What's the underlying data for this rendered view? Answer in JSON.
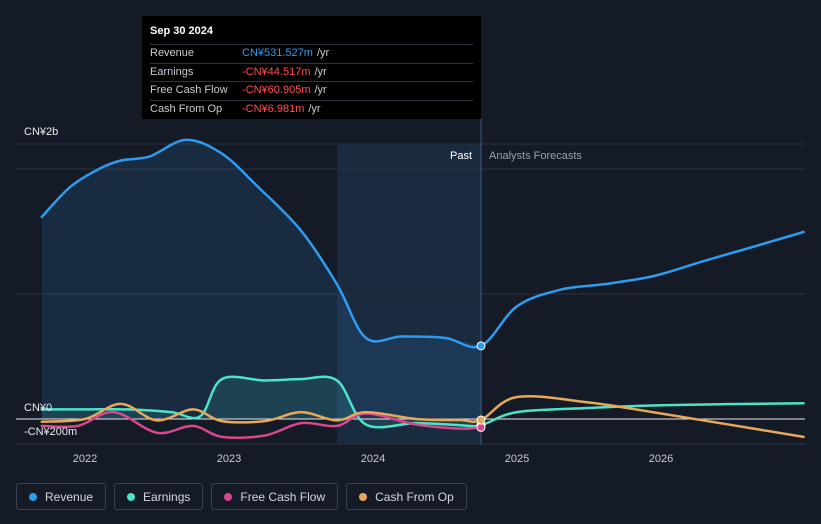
{
  "tooltip": {
    "date": "Sep 30 2024",
    "rows": [
      {
        "label": "Revenue",
        "value": "CN¥531.527m",
        "unit": "/yr",
        "color": "#2d9cf0"
      },
      {
        "label": "Earnings",
        "value": "-CN¥44.517m",
        "unit": "/yr",
        "color": "#ff4d4d"
      },
      {
        "label": "Free Cash Flow",
        "value": "-CN¥60.905m",
        "unit": "/yr",
        "color": "#ff4d4d"
      },
      {
        "label": "Cash From Op",
        "value": "-CN¥6.981m",
        "unit": "/yr",
        "color": "#ff4d4d"
      }
    ]
  },
  "labels": {
    "y_top": "CN¥2b",
    "y_zero": "CN¥0",
    "y_neg": "-CN¥200m",
    "past": "Past",
    "forecast": "Analysts Forecasts"
  },
  "legend": [
    {
      "label": "Revenue",
      "color": "#2d9cf0"
    },
    {
      "label": "Earnings",
      "color": "#4de3c8"
    },
    {
      "label": "Free Cash Flow",
      "color": "#d6478d"
    },
    {
      "label": "Cash From Op",
      "color": "#e8a85a"
    }
  ],
  "chart_data": {
    "type": "line",
    "x_ticks": [
      "2022",
      "2023",
      "2024",
      "2025",
      "2026"
    ],
    "ylim": [
      -200,
      2000
    ],
    "y_unit": "CN¥m",
    "split_date": 2024.75,
    "series": [
      {
        "name": "Revenue",
        "color": "#2d9cf0",
        "area": true,
        "x": [
          2021.7,
          2021.9,
          2022.1,
          2022.25,
          2022.45,
          2022.7,
          2022.95,
          2023.2,
          2023.5,
          2023.75,
          2023.95,
          2024.2,
          2024.5,
          2024.75,
          2025.0,
          2025.3,
          2025.6,
          2025.95,
          2026.3,
          2026.6,
          2026.99
        ],
        "y": [
          1470,
          1690,
          1820,
          1880,
          1910,
          2030,
          1930,
          1690,
          1370,
          980,
          590,
          600,
          590,
          532,
          820,
          940,
          980,
          1040,
          1150,
          1240,
          1360
        ]
      },
      {
        "name": "Earnings",
        "color": "#4de3c8",
        "area": true,
        "x": [
          2021.7,
          2022.0,
          2022.3,
          2022.6,
          2022.8,
          2022.95,
          2023.25,
          2023.5,
          2023.75,
          2023.95,
          2024.3,
          2024.6,
          2024.75,
          2025.0,
          2025.5,
          2026.0,
          2026.99
        ],
        "y": [
          70,
          70,
          70,
          50,
          20,
          290,
          280,
          290,
          280,
          -40,
          -30,
          -45,
          -45,
          50,
          80,
          100,
          115
        ]
      },
      {
        "name": "Free Cash Flow",
        "color": "#d6478d",
        "x": [
          2021.7,
          2021.95,
          2022.2,
          2022.5,
          2022.75,
          2022.95,
          2023.25,
          2023.5,
          2023.75,
          2023.95,
          2024.3,
          2024.6,
          2024.75
        ],
        "y": [
          -50,
          -50,
          50,
          -100,
          -50,
          -130,
          -120,
          -30,
          -50,
          40,
          -40,
          -70,
          -61
        ]
      },
      {
        "name": "Cash From Op",
        "color": "#e8a85a",
        "x": [
          2021.7,
          2022.0,
          2022.25,
          2022.5,
          2022.75,
          2022.95,
          2023.25,
          2023.5,
          2023.75,
          2023.95,
          2024.3,
          2024.6,
          2024.75,
          2025.0,
          2025.5,
          2026.0,
          2026.99
        ],
        "y": [
          -20,
          0,
          110,
          -10,
          70,
          -15,
          -15,
          50,
          -10,
          50,
          0,
          -7,
          -7,
          160,
          120,
          40,
          -130
        ]
      }
    ]
  }
}
